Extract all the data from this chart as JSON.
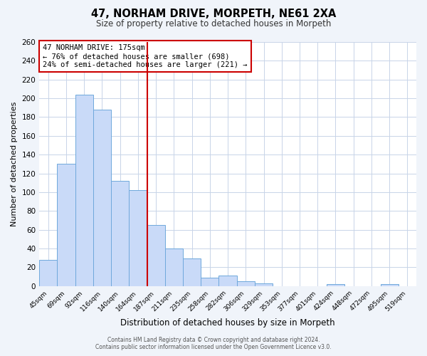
{
  "title": "47, NORHAM DRIVE, MORPETH, NE61 2XA",
  "subtitle": "Size of property relative to detached houses in Morpeth",
  "xlabel": "Distribution of detached houses by size in Morpeth",
  "ylabel": "Number of detached properties",
  "bin_labels": [
    "45sqm",
    "69sqm",
    "92sqm",
    "116sqm",
    "140sqm",
    "164sqm",
    "187sqm",
    "211sqm",
    "235sqm",
    "258sqm",
    "282sqm",
    "306sqm",
    "329sqm",
    "353sqm",
    "377sqm",
    "401sqm",
    "424sqm",
    "448sqm",
    "472sqm",
    "495sqm",
    "519sqm"
  ],
  "bar_values": [
    28,
    130,
    204,
    188,
    112,
    102,
    65,
    40,
    29,
    9,
    11,
    5,
    3,
    0,
    0,
    0,
    2,
    0,
    0,
    2,
    0
  ],
  "bar_color": "#c9daf8",
  "bar_edge_color": "#6fa8dc",
  "grid_color": "#c8d4e8",
  "background_color": "#ffffff",
  "fig_background_color": "#f0f4fa",
  "vline_x": 5.5,
  "vline_color": "#cc0000",
  "annotation_title": "47 NORHAM DRIVE: 175sqm",
  "annotation_line1": "← 76% of detached houses are smaller (698)",
  "annotation_line2": "24% of semi-detached houses are larger (221) →",
  "annotation_box_color": "#ffffff",
  "annotation_box_edge": "#cc0000",
  "ylim": [
    0,
    260
  ],
  "yticks": [
    0,
    20,
    40,
    60,
    80,
    100,
    120,
    140,
    160,
    180,
    200,
    220,
    240,
    260
  ],
  "footer_line1": "Contains HM Land Registry data © Crown copyright and database right 2024.",
  "footer_line2": "Contains public sector information licensed under the Open Government Licence v3.0."
}
